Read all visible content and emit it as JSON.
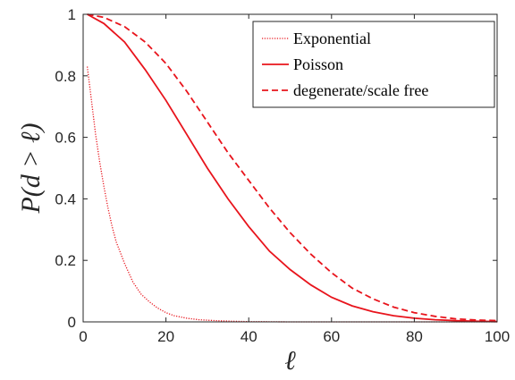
{
  "chart_data": {
    "type": "line",
    "title": "",
    "xlabel": "ℓ",
    "ylabel": "P(d > ℓ)",
    "xlim": [
      0,
      100
    ],
    "ylim": [
      0,
      1
    ],
    "xticks": [
      "0",
      "20",
      "40",
      "60",
      "80",
      "100"
    ],
    "yticks": [
      "0",
      "0.2",
      "0.4",
      "0.6",
      "0.8",
      "1"
    ],
    "grid": false,
    "legend_position": "top-right",
    "color": "#e8141c",
    "series": [
      {
        "name": "Exponential",
        "style": "dotted",
        "x": [
          1,
          2,
          3,
          4,
          5,
          6,
          7,
          8,
          10,
          12,
          14,
          16,
          18,
          20,
          22,
          25,
          28,
          32,
          36,
          40,
          50,
          60,
          70,
          80,
          90,
          100
        ],
        "y": [
          0.83,
          0.72,
          0.61,
          0.52,
          0.44,
          0.37,
          0.31,
          0.26,
          0.19,
          0.13,
          0.09,
          0.065,
          0.045,
          0.03,
          0.02,
          0.012,
          0.007,
          0.004,
          0.002,
          0.001,
          0,
          0,
          0,
          0,
          0,
          0
        ]
      },
      {
        "name": "Poisson",
        "style": "solid",
        "x": [
          1,
          5,
          10,
          15,
          20,
          25,
          30,
          35,
          40,
          45,
          50,
          55,
          60,
          65,
          70,
          75,
          80,
          85,
          90,
          95,
          100
        ],
        "y": [
          1.0,
          0.97,
          0.91,
          0.82,
          0.72,
          0.61,
          0.5,
          0.4,
          0.31,
          0.23,
          0.17,
          0.12,
          0.08,
          0.052,
          0.033,
          0.02,
          0.012,
          0.007,
          0.004,
          0.002,
          0.001
        ]
      },
      {
        "name": "degenerate/scale free",
        "style": "dashed",
        "x": [
          1,
          5,
          10,
          15,
          20,
          25,
          30,
          35,
          40,
          45,
          50,
          55,
          60,
          65,
          70,
          75,
          80,
          85,
          90,
          95,
          100
        ],
        "y": [
          1.0,
          0.99,
          0.96,
          0.91,
          0.84,
          0.75,
          0.65,
          0.55,
          0.46,
          0.37,
          0.29,
          0.22,
          0.16,
          0.11,
          0.075,
          0.048,
          0.03,
          0.018,
          0.01,
          0.006,
          0.004
        ]
      }
    ]
  }
}
